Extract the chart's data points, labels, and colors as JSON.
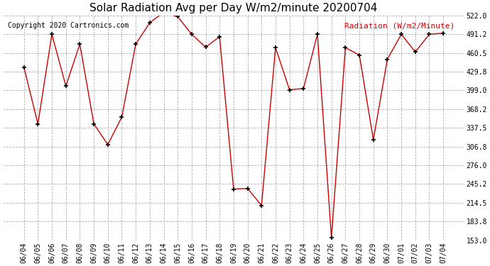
{
  "title": "Solar Radiation Avg per Day W/m2/minute 20200704",
  "copyright": "Copyright 2020 Cartronics.com",
  "legend_label": "Radiation (W/m2/Minute)",
  "dates": [
    "06/04",
    "06/05",
    "06/06",
    "06/07",
    "06/08",
    "06/09",
    "06/10",
    "06/11",
    "06/12",
    "06/13",
    "06/14",
    "06/15",
    "06/16",
    "06/17",
    "06/18",
    "06/19",
    "06/20",
    "06/21",
    "06/22",
    "06/23",
    "06/24",
    "06/25",
    "06/26",
    "06/27",
    "06/28",
    "06/29",
    "06/30",
    "07/01",
    "07/02",
    "07/03",
    "07/04"
  ],
  "values": [
    437.0,
    344.0,
    491.0,
    406.0,
    475.0,
    344.0,
    310.0,
    355.0,
    475.0,
    510.0,
    527.0,
    520.0,
    491.0,
    470.0,
    487.0,
    237.0,
    238.0,
    210.0,
    469.0,
    400.0,
    402.0,
    491.0,
    157.0,
    469.0,
    457.0,
    318.0,
    450.0,
    491.0,
    462.0,
    491.0,
    493.0
  ],
  "ylim": [
    153.0,
    522.0
  ],
  "yticks": [
    153.0,
    183.8,
    214.5,
    245.2,
    276.0,
    306.8,
    337.5,
    368.2,
    399.0,
    429.8,
    460.5,
    491.2,
    522.0
  ],
  "line_color": "#cc0000",
  "marker_color": "#000000",
  "bg_color": "#ffffff",
  "plot_bg_color": "#ffffff",
  "grid_color": "#b0b0b0",
  "title_fontsize": 11,
  "copyright_fontsize": 7,
  "legend_color": "#cc0000",
  "legend_fontsize": 8,
  "tick_fontsize": 7,
  "marker_size": 4,
  "linewidth": 1.0
}
